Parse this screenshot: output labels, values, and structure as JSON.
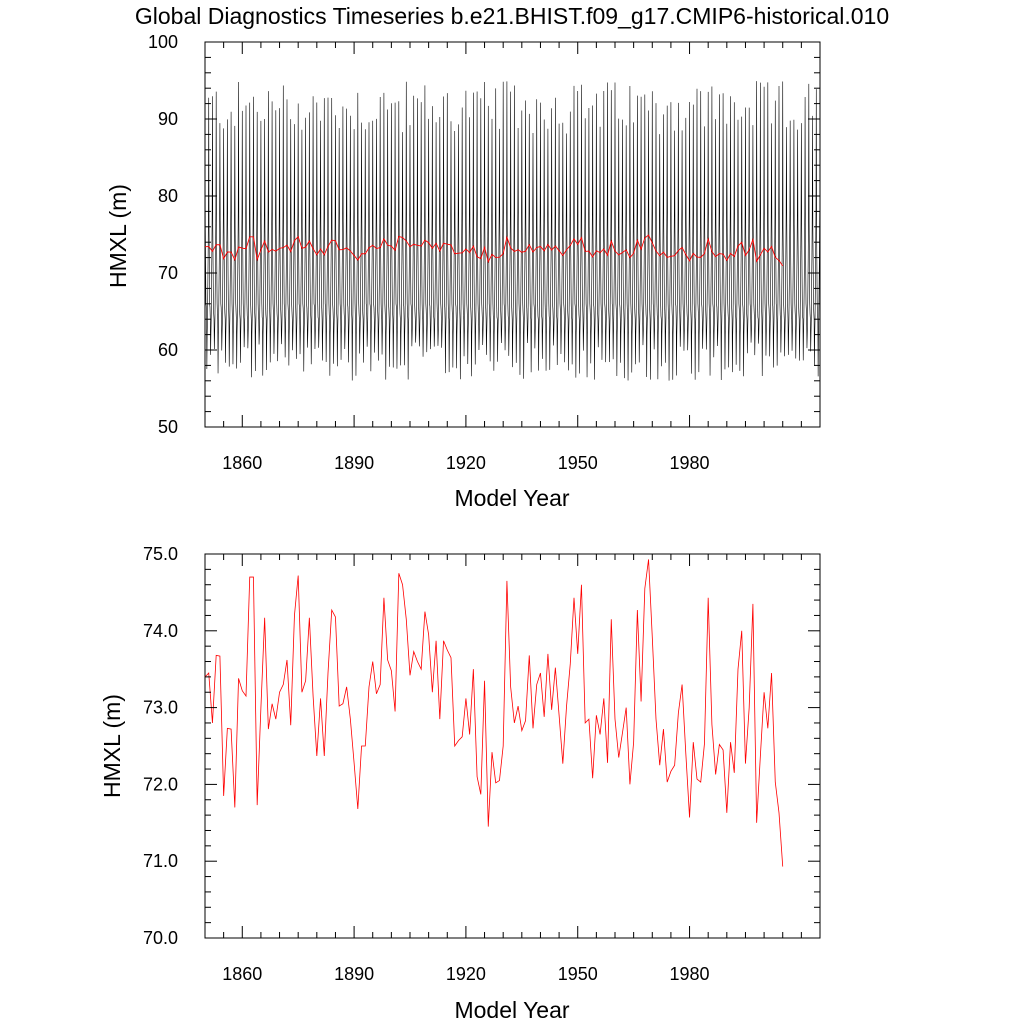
{
  "title": "Global Diagnostics Timeseries b.e21.BHIST.f09_g17.CMIP6-historical.010",
  "colors": {
    "annual": "#ff0000",
    "monthly": "#000000",
    "axes": "#000000"
  },
  "chart_data": [
    {
      "type": "line",
      "xlabel": "Model Year",
      "ylabel": "HMXL (m)",
      "xlim": [
        1850,
        2015
      ],
      "ylim": [
        50,
        100
      ],
      "x_ticks": [
        1860,
        1890,
        1920,
        1950,
        1980
      ],
      "x_tick_labels": [
        "1860",
        "1890",
        "1920",
        "1950",
        "1980"
      ],
      "y_ticks": [
        50,
        60,
        70,
        80,
        90,
        100
      ],
      "y_tick_labels": [
        "50",
        "60",
        "70",
        "80",
        "90",
        "100"
      ],
      "grid": false,
      "series": [
        {
          "color": "#000000",
          "resolution": "monthly",
          "start_year": 1850,
          "end_year": 2015,
          "annual_max_range": [
            88,
            95
          ],
          "annual_min_range": [
            56,
            61
          ],
          "typical_summer_peak": 65,
          "typical_winter_low_secondary": 76,
          "mean": 73
        },
        {
          "color": "#ff0000",
          "resolution": "annual",
          "same_values_as": "lower_panel"
        }
      ]
    },
    {
      "type": "line",
      "xlabel": "Model Year",
      "ylabel": "HMXL (m)",
      "xlim": [
        1850,
        2015
      ],
      "ylim": [
        70,
        75
      ],
      "x_ticks": [
        1860,
        1890,
        1920,
        1950,
        1980
      ],
      "x_tick_labels": [
        "1860",
        "1890",
        "1920",
        "1950",
        "1980"
      ],
      "y_ticks": [
        70,
        71,
        72,
        73,
        74,
        75
      ],
      "y_tick_labels": [
        "70.0",
        "71.0",
        "72.0",
        "73.0",
        "74.0",
        "75.0"
      ],
      "grid": false,
      "series": [
        {
          "color": "#ff0000",
          "x_start": 1850,
          "x_step": 1,
          "values": [
            73.4,
            73.45,
            72.8,
            73.68,
            73.67,
            71.85,
            72.73,
            72.72,
            71.7,
            73.38,
            73.22,
            73.15,
            74.7,
            74.7,
            71.73,
            73.0,
            74.17,
            72.72,
            73.05,
            72.85,
            73.2,
            73.3,
            73.62,
            72.77,
            74.2,
            74.72,
            73.2,
            73.35,
            74.17,
            73.15,
            72.37,
            73.12,
            72.37,
            73.45,
            74.27,
            74.18,
            73.02,
            73.05,
            73.27,
            72.85,
            72.28,
            71.68,
            72.5,
            72.5,
            73.27,
            73.6,
            73.18,
            73.3,
            74.43,
            73.62,
            73.48,
            72.95,
            74.75,
            74.6,
            74.15,
            73.42,
            73.73,
            73.6,
            73.5,
            74.25,
            73.95,
            73.2,
            73.87,
            72.85,
            73.87,
            73.75,
            73.65,
            72.5,
            72.57,
            72.62,
            73.12,
            72.65,
            73.5,
            72.1,
            71.87,
            73.35,
            71.45,
            72.42,
            72.02,
            72.05,
            72.5,
            74.65,
            73.27,
            72.8,
            73.02,
            72.7,
            72.83,
            73.68,
            72.73,
            73.3,
            73.45,
            72.88,
            73.7,
            72.97,
            73.52,
            72.9,
            72.27,
            73.02,
            73.57,
            74.43,
            73.7,
            74.6,
            72.8,
            72.85,
            72.08,
            72.9,
            72.65,
            73.12,
            72.28,
            74.15,
            72.85,
            72.35,
            72.67,
            73.0,
            72.0,
            72.55,
            74.27,
            73.08,
            74.55,
            74.93,
            73.92,
            72.85,
            72.25,
            72.72,
            72.03,
            72.17,
            72.25,
            72.93,
            73.3,
            72.4,
            71.57,
            72.55,
            72.07,
            72.03,
            72.53,
            74.43,
            72.78,
            72.13,
            72.52,
            72.45,
            71.63,
            72.55,
            72.15,
            73.5,
            74.0,
            72.27,
            73.0,
            74.35,
            71.5,
            72.37,
            73.2,
            72.73,
            73.45,
            72.03,
            71.63,
            70.93
          ]
        }
      ]
    }
  ]
}
